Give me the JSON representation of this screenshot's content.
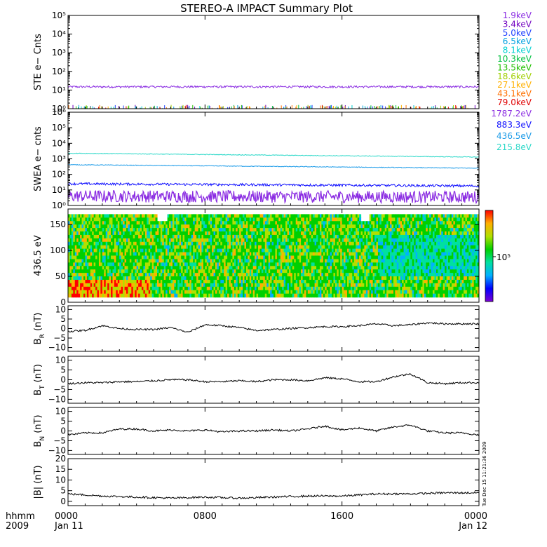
{
  "title": "STEREO-A IMPACT Summary Plot",
  "footer": {
    "hhmm_label": "hhmm",
    "year_label": "2009",
    "timestamp": "Tue Dec 15 11:21:36 2009"
  },
  "colorbar": {
    "tick_label": "10⁵",
    "colors": [
      "#7a00d0",
      "#0000ff",
      "#00b0ff",
      "#00e0a0",
      "#00d000",
      "#b0e000",
      "#ffb000",
      "#ff0000"
    ]
  },
  "chart_data": [
    {
      "id": "ste",
      "type": "line",
      "ylabel": "STE e− Cnts",
      "yscale": "log",
      "ylim": [
        1,
        100000
      ],
      "yticks": [
        {
          "v": 1,
          "label": "10⁰"
        },
        {
          "v": 10,
          "label": "10¹"
        },
        {
          "v": 100,
          "label": "10²"
        },
        {
          "v": 1000,
          "label": "10³"
        },
        {
          "v": 10000,
          "label": "10⁴"
        },
        {
          "v": 100000,
          "label": "10⁵"
        }
      ],
      "series": [
        {
          "name": "1.9keV",
          "color": "#8a2be2",
          "level": 15
        },
        {
          "name": "3.4keV",
          "color": "#7000c0",
          "level": 1.1
        },
        {
          "name": "5.0keV",
          "color": "#2040ff",
          "level": 1.1
        },
        {
          "name": "6.5keV",
          "color": "#00a0e0",
          "level": 1.05
        },
        {
          "name": "8.1keV",
          "color": "#00d0d0",
          "level": 1.05
        },
        {
          "name": "10.3keV",
          "color": "#00c040",
          "level": 1.0
        },
        {
          "name": "13.5keV",
          "color": "#20c000",
          "level": 1.0
        },
        {
          "name": "18.6keV",
          "color": "#a0d000",
          "level": 1.0
        },
        {
          "name": "27.1keV",
          "color": "#ffb000",
          "level": 1.15
        },
        {
          "name": "43.1keV",
          "color": "#ff7000",
          "level": 1.0
        },
        {
          "name": "79.0keV",
          "color": "#e00000",
          "level": 1.0
        }
      ]
    },
    {
      "id": "swea",
      "type": "line",
      "ylabel": "SWEA e− cnts",
      "yscale": "log",
      "ylim": [
        1,
        1000000
      ],
      "yticks": [
        {
          "v": 1,
          "label": "10⁰"
        },
        {
          "v": 10,
          "label": "10¹"
        },
        {
          "v": 100,
          "label": "10²"
        },
        {
          "v": 1000,
          "label": "10³"
        },
        {
          "v": 10000,
          "label": "10⁴"
        },
        {
          "v": 100000,
          "label": "10⁵"
        },
        {
          "v": 1000000,
          "label": "10⁶"
        }
      ],
      "series": [
        {
          "name": "1787.2eV",
          "color": "#8a2be2",
          "start": 4,
          "end": 3.5
        },
        {
          "name": "883.3eV",
          "color": "#1010ff",
          "start": 25,
          "end": 18
        },
        {
          "name": "436.5eV",
          "color": "#1a9ae8",
          "start": 420,
          "end": 250
        },
        {
          "name": "215.8eV",
          "color": "#2ad8c8",
          "start": 2300,
          "end": 1300
        }
      ]
    },
    {
      "id": "pad",
      "type": "heatmap",
      "ylabel": "436.5 eV",
      "ylim": [
        0,
        180
      ],
      "yticks": [
        {
          "v": 0,
          "label": "0"
        },
        {
          "v": 50,
          "label": "50"
        },
        {
          "v": 100,
          "label": "100"
        },
        {
          "v": 150,
          "label": "150"
        }
      ]
    },
    {
      "id": "br",
      "type": "line",
      "ylabel": "B_R (nT)",
      "ylim": [
        -12,
        12
      ],
      "yticks": [
        {
          "v": -10,
          "label": "−10"
        },
        {
          "v": -5,
          "label": "−5"
        },
        {
          "v": 0,
          "label": "0"
        },
        {
          "v": 5,
          "label": "5"
        },
        {
          "v": 10,
          "label": "10"
        }
      ],
      "series": [
        {
          "name": "",
          "x": [
            0,
            1,
            2,
            3,
            4,
            5,
            6,
            7,
            8,
            9,
            10,
            11,
            12,
            13,
            14,
            15,
            16,
            17,
            18,
            19,
            20,
            21,
            22,
            23,
            24
          ],
          "y": [
            -1.5,
            -1,
            1.5,
            0,
            -0.5,
            -0.5,
            0.5,
            -2,
            2,
            1.5,
            0.5,
            -1,
            -0.5,
            0,
            0.5,
            1,
            1,
            1.5,
            2.5,
            1.5,
            2,
            3,
            2.5,
            2.5,
            2.5
          ]
        }
      ]
    },
    {
      "id": "bt",
      "type": "line",
      "ylabel": "B_T (nT)",
      "ylim": [
        -12,
        12
      ],
      "yticks": [
        {
          "v": -10,
          "label": "−10"
        },
        {
          "v": -5,
          "label": "−5"
        },
        {
          "v": 0,
          "label": "0"
        },
        {
          "v": 5,
          "label": "5"
        },
        {
          "v": 10,
          "label": "10"
        }
      ],
      "series": [
        {
          "name": "",
          "x": [
            0,
            1,
            2,
            3,
            4,
            5,
            6,
            7,
            8,
            9,
            10,
            11,
            12,
            13,
            14,
            15,
            16,
            17,
            18,
            19,
            20,
            21,
            22,
            23,
            24
          ],
          "y": [
            -2,
            -1.5,
            -1.5,
            -1,
            -1,
            -0.5,
            0,
            0,
            -1,
            -1,
            -0.5,
            -1,
            0,
            0,
            -0.5,
            1,
            0.5,
            -1,
            -1,
            1.5,
            3,
            -1.5,
            -2,
            -1.5,
            -1.5
          ]
        }
      ]
    },
    {
      "id": "bn",
      "type": "line",
      "ylabel": "B_N (nT)",
      "ylim": [
        -12,
        12
      ],
      "yticks": [
        {
          "v": -10,
          "label": "−10"
        },
        {
          "v": -5,
          "label": "−5"
        },
        {
          "v": 0,
          "label": "0"
        },
        {
          "v": 5,
          "label": "5"
        },
        {
          "v": 10,
          "label": "10"
        }
      ],
      "series": [
        {
          "name": "",
          "x": [
            0,
            1,
            2,
            3,
            4,
            5,
            6,
            7,
            8,
            9,
            10,
            11,
            12,
            13,
            14,
            15,
            16,
            17,
            18,
            19,
            20,
            21,
            22,
            23,
            24
          ],
          "y": [
            -2,
            -1,
            -1,
            1,
            1,
            0,
            0.5,
            0,
            0.5,
            -0.5,
            0,
            0,
            0.5,
            0,
            1,
            2.5,
            0.5,
            1.5,
            0,
            2,
            3,
            0,
            -1,
            -1,
            -2
          ]
        }
      ]
    },
    {
      "id": "bmag",
      "type": "line",
      "ylabel": "|B| (nT)",
      "ylim": [
        -2,
        20
      ],
      "yticks": [
        {
          "v": 0,
          "label": "0"
        },
        {
          "v": 5,
          "label": "5"
        },
        {
          "v": 10,
          "label": "10"
        },
        {
          "v": 15,
          "label": "15"
        },
        {
          "v": 20,
          "label": "20"
        }
      ],
      "series": [
        {
          "name": "",
          "x": [
            0,
            2,
            4,
            6,
            8,
            10,
            12,
            14,
            16,
            18,
            20,
            22,
            24
          ],
          "y": [
            3.5,
            2.5,
            2,
            1.5,
            2,
            1.5,
            2,
            2.5,
            2.5,
            3.5,
            3.5,
            4,
            4
          ]
        }
      ]
    }
  ],
  "xaxis": {
    "range": [
      0,
      24
    ],
    "ticks": [
      {
        "v": 0,
        "label": "0000",
        "date": "Jan 11"
      },
      {
        "v": 8,
        "label": "0800",
        "date": ""
      },
      {
        "v": 16,
        "label": "1600",
        "date": ""
      },
      {
        "v": 24,
        "label": "0000",
        "date": "Jan 12"
      }
    ]
  }
}
